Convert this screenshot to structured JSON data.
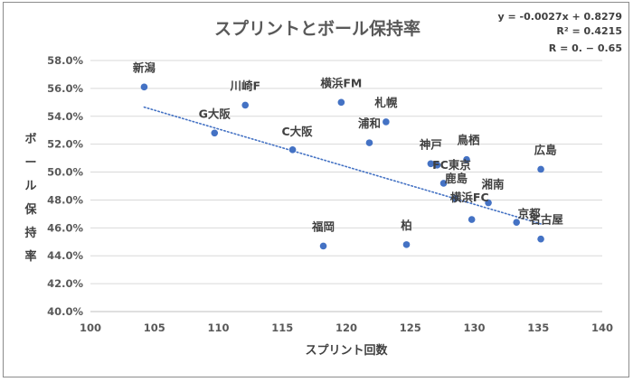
{
  "chart_data": {
    "type": "scatter",
    "title": "スプリントとボール保持率",
    "xlabel": "スプリント回数",
    "ylabel": "ボール保持率",
    "xlim": [
      100,
      140
    ],
    "ylim": [
      40,
      58
    ],
    "x_ticks": [
      "100",
      "105",
      "110",
      "115",
      "120",
      "125",
      "130",
      "135",
      "140"
    ],
    "y_ticks": [
      "40.0%",
      "42.0%",
      "44.0%",
      "46.0%",
      "48.0%",
      "50.0%",
      "52.0%",
      "54.0%",
      "56.0%",
      "58.0%"
    ],
    "grid": "horizontal",
    "legend": "none",
    "marker_color": "#4472c4",
    "trendline": {
      "style": "dotted",
      "color": "#4472c4",
      "slope": -0.0027,
      "intercept": 0.8279
    },
    "equation_lines": [
      "y = -0.0027x + 0.8279",
      "R² = 0.4215",
      "R = 0. − 0.65"
    ],
    "points": [
      {
        "label": "新潟",
        "x": 104.2,
        "y": 56.1
      },
      {
        "label": "G大阪",
        "x": 109.7,
        "y": 52.8
      },
      {
        "label": "川崎F",
        "x": 112.1,
        "y": 54.8
      },
      {
        "label": "C大阪",
        "x": 115.8,
        "y": 51.6
      },
      {
        "label": "福岡",
        "x": 118.2,
        "y": 44.7
      },
      {
        "label": "横浜FM",
        "x": 119.6,
        "y": 55.0
      },
      {
        "label": "浦和",
        "x": 121.8,
        "y": 52.1
      },
      {
        "label": "札幌",
        "x": 123.1,
        "y": 53.6
      },
      {
        "label": "柏",
        "x": 124.7,
        "y": 44.8
      },
      {
        "label": "神戸",
        "x": 126.6,
        "y": 50.6
      },
      {
        "label": "FC東京",
        "x": 127.1,
        "y": 50.5
      },
      {
        "label": "鹿島",
        "x": 127.6,
        "y": 49.2
      },
      {
        "label": "鳥栖",
        "x": 129.4,
        "y": 50.9
      },
      {
        "label": "横浜FC",
        "x": 128.5,
        "y": 48.1
      },
      {
        "label": "湘南",
        "x": 131.1,
        "y": 47.8
      },
      {
        "label": "京都",
        "x": 133.3,
        "y": 46.4
      },
      {
        "label": "名古屋",
        "x": 135.2,
        "y": 45.2
      },
      {
        "label": "広島",
        "x": 135.2,
        "y": 50.2
      },
      {
        "label": "",
        "x": 129.8,
        "y": 46.6
      }
    ]
  }
}
